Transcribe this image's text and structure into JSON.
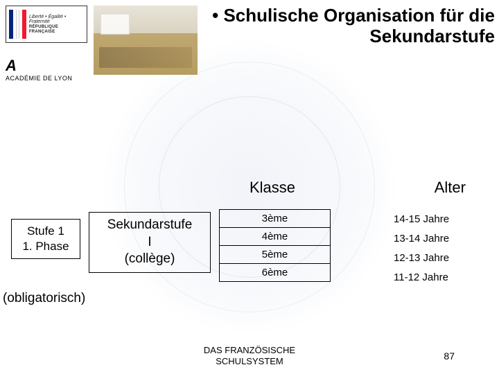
{
  "title": "• Schulische Organisation für die Sekundarstufe",
  "logos": {
    "rf_motto": "Liberté • Égalité • Fraternité",
    "rf_name": "RÉPUBLIQUE FRANÇAISE",
    "academie": "ACADÉMIE DE LYON"
  },
  "columns": {
    "klasse": "Klasse",
    "alter": "Alter"
  },
  "left": {
    "stufe_line1": "Stufe 1",
    "stufe_line2": "1. Phase",
    "sek_line1": "Sekundarstufe",
    "sek_line2": "I",
    "sek_line3": "(collège)",
    "obligatorisch": "(obligatorisch)"
  },
  "grades": [
    {
      "klasse": "3ème",
      "alter": "14-15 Jahre"
    },
    {
      "klasse": "4ème",
      "alter": "13-14 Jahre"
    },
    {
      "klasse": "5ème",
      "alter": "12-13 Jahre"
    },
    {
      "klasse": "6ème",
      "alter": "11-12 Jahre"
    }
  ],
  "footer": {
    "line1": "DAS FRANZÖSISCHE",
    "line2": "SCHULSYSTEM",
    "page": "87"
  }
}
